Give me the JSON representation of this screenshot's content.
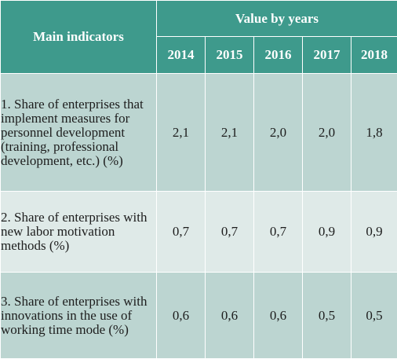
{
  "table": {
    "header": {
      "main_label": "Main indicators",
      "group_label": "Value by years",
      "years": [
        "2014",
        "2015",
        "2016",
        "2017",
        "2018"
      ]
    },
    "rows": [
      {
        "indicator": "1. Share of enterprises that implement measures for personnel development (training, professional development, etc.) (%)",
        "values": [
          "2,1",
          "2,1",
          "2,0",
          "2,0",
          "1,8"
        ]
      },
      {
        "indicator": "2. Share of enterprises with new labor motivation methods (%)",
        "values": [
          "0,7",
          "0,7",
          "0,7",
          "0,9",
          "0,9"
        ]
      },
      {
        "indicator": "3. Share of enterprises with innovations in the use of working time mode (%)",
        "values": [
          "0,6",
          "0,6",
          "0,6",
          "0,5",
          "0,5"
        ]
      }
    ],
    "colors": {
      "header": "#3e9a8c",
      "band_dark": "#bcd5d1",
      "band_light": "#dfeae8"
    }
  }
}
